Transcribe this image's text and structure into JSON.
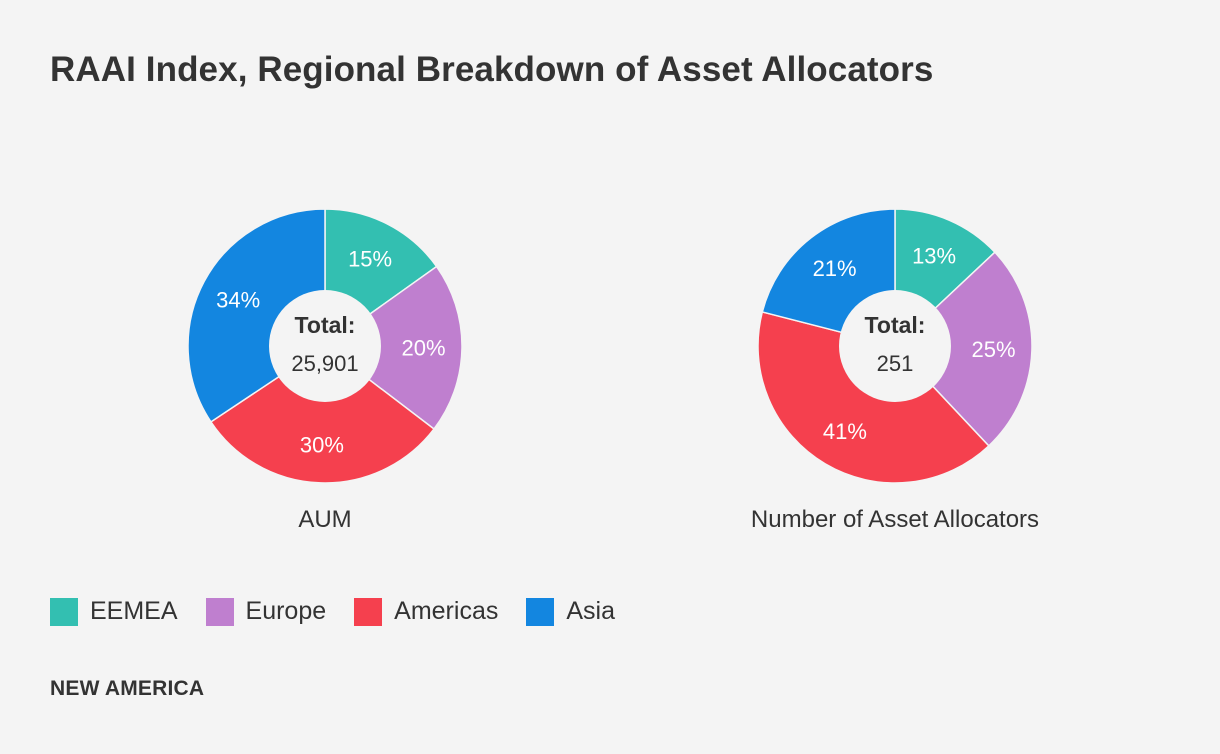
{
  "title": "RAAI Index, Regional Breakdown of Asset Allocators",
  "brand": "NEW AMERICA",
  "colors": {
    "background": "#f4f4f4",
    "EEMEA": "#33bfb1",
    "Europe": "#bf7fcf",
    "Americas": "#f5404e",
    "Asia": "#1386e0",
    "center": "#f4f4f4"
  },
  "legend": [
    {
      "label": "EEMEA",
      "color": "#33bfb1"
    },
    {
      "label": "Europe",
      "color": "#bf7fcf"
    },
    {
      "label": "Americas",
      "color": "#f5404e"
    },
    {
      "label": "Asia",
      "color": "#1386e0"
    }
  ],
  "chart_data": [
    {
      "type": "pie",
      "title": "AUM",
      "center_label": "Total:",
      "center_value": "25,901",
      "categories": [
        "EEMEA",
        "Europe",
        "Americas",
        "Asia"
      ],
      "values": [
        15,
        20,
        30,
        34
      ],
      "labels": [
        "15%",
        "20%",
        "30%",
        "34%"
      ],
      "unit": "%"
    },
    {
      "type": "pie",
      "title": "Number of Asset Allocators",
      "center_label": "Total:",
      "center_value": "251",
      "categories": [
        "EEMEA",
        "Europe",
        "Americas",
        "Asia"
      ],
      "values": [
        13,
        25,
        41,
        21
      ],
      "labels": [
        "13%",
        "25%",
        "41%",
        "21%"
      ],
      "unit": "%"
    }
  ]
}
